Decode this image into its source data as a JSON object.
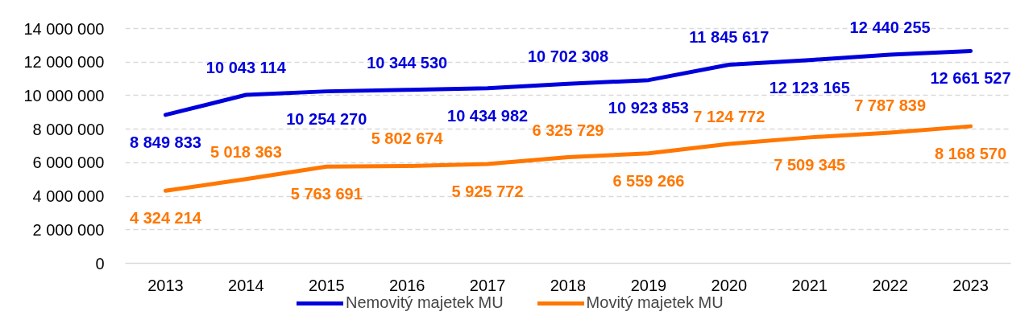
{
  "chart_data": {
    "type": "line",
    "categories": [
      "2013",
      "2014",
      "2015",
      "2016",
      "2017",
      "2018",
      "2019",
      "2020",
      "2021",
      "2022",
      "2023"
    ],
    "series": [
      {
        "name": "Nemovitý majetek MU",
        "color": "#0000dc",
        "values": [
          8849833,
          10043114,
          10254270,
          10344530,
          10434982,
          10702308,
          10923853,
          11845617,
          12123165,
          12440255,
          12661527
        ],
        "value_labels": [
          "8 849 833",
          "10 043 114",
          "10 254 270",
          "10 344 530",
          "10 434 982",
          "10 702 308",
          "10 923 853",
          "11 845 617",
          "12 123 165",
          "12 440 255",
          "12 661 527"
        ]
      },
      {
        "name": "Movitý majetek MU",
        "color": "#ff7700",
        "values": [
          4324214,
          5018363,
          5763691,
          5802674,
          5925772,
          6325729,
          6559266,
          7124772,
          7509345,
          7787839,
          8168570
        ],
        "value_labels": [
          "4 324 214",
          "5 018 363",
          "5 763 691",
          "5 802 674",
          "5 925 772",
          "6 325 729",
          "6 559 266",
          "7 124 772",
          "7 509 345",
          "7 787 839",
          "8 168 570"
        ]
      }
    ],
    "ylim": [
      0,
      14000000
    ],
    "yticks": [
      0,
      {
        "value": 2000000,
        "label": "2 000 000"
      },
      {
        "value": 4000000,
        "label": "4 000 000"
      },
      {
        "value": 6000000,
        "label": "6 000 000"
      },
      {
        "value": 8000000,
        "label": "8 000 000"
      },
      {
        "value": 10000000,
        "label": "10 000 000"
      },
      {
        "value": 12000000,
        "label": "12 000 000"
      },
      {
        "value": 14000000,
        "label": "14 000 000"
      }
    ],
    "grid": "y",
    "legend": "bottom",
    "line_style": "solid"
  }
}
